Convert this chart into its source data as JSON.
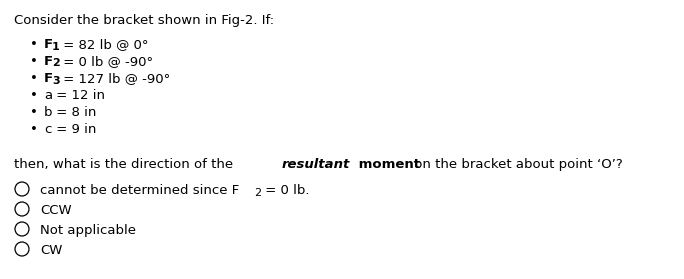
{
  "title": "Consider the bracket shown in Fig-2. If:",
  "bullets": [
    {
      "prefix": "F",
      "sub": "1",
      "suffix": " = 82 lb @ 0°",
      "bold_prefix": true
    },
    {
      "prefix": "F",
      "sub": "2",
      "suffix": " = 0 lb @ -90°",
      "bold_prefix": true
    },
    {
      "prefix": "F",
      "sub": "3",
      "suffix": " = 127 lb @ -90°",
      "bold_prefix": true
    },
    {
      "prefix": "a",
      "sub": "",
      "suffix": " = 12 in",
      "bold_prefix": false
    },
    {
      "prefix": "b",
      "sub": "",
      "suffix": " = 8 in",
      "bold_prefix": false
    },
    {
      "prefix": "c",
      "sub": "",
      "suffix": " = 9 in",
      "bold_prefix": false
    }
  ],
  "question_normal1": "then, what is the direction of the ",
  "question_bold_italic": "resultant",
  "question_bold": " moment",
  "question_normal2": " on the bracket about point ‘O’?",
  "options": [
    [
      {
        "text": "cannot be determined since F",
        "bold": false,
        "sub": false
      },
      {
        "text": "2",
        "bold": false,
        "sub": true
      },
      {
        "text": " = 0 lb.",
        "bold": false,
        "sub": false
      }
    ],
    [
      {
        "text": "CCW",
        "bold": false,
        "sub": false
      }
    ],
    [
      {
        "text": "Not applicable",
        "bold": false,
        "sub": false
      }
    ],
    [
      {
        "text": "CW",
        "bold": false,
        "sub": false
      }
    ]
  ],
  "bg_color": "#ffffff",
  "text_color": "#000000",
  "font_size": 9.5
}
